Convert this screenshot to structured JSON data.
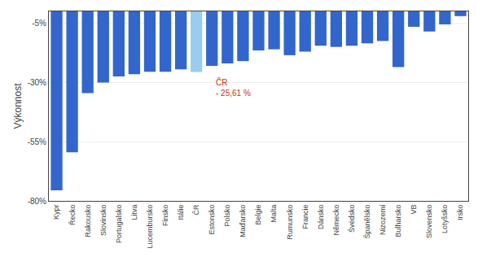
{
  "chart_data": {
    "type": "bar",
    "categories": [
      "Kypr",
      "Řecko",
      "Rakousko",
      "Slovinsko",
      "Portugalsko",
      "Litva",
      "Lucembursko",
      "Finsko",
      "Itálie",
      "ČR",
      "Estonsko",
      "Polsko",
      "Maďarsko",
      "Belgie",
      "Malta",
      "Rumunsko",
      "Francie",
      "Dánsko",
      "Německo",
      "Švédsko",
      "Španělsko",
      "Nizozemí",
      "Bulharsko",
      "VB",
      "Slovensko",
      "Lotyšsko",
      "Irsko"
    ],
    "values": [
      -75.5,
      -59.5,
      -34.5,
      -30.0,
      -27.5,
      -26.5,
      -25.5,
      -25.5,
      -24.5,
      -25.61,
      -23.0,
      -22.0,
      -21.0,
      -16.5,
      -16.0,
      -18.5,
      -17.0,
      -14.5,
      -15.0,
      -14.5,
      -13.5,
      -12.5,
      -23.5,
      -6.5,
      -8.5,
      -5.5,
      -2.0
    ],
    "colors": [
      "#3366CC",
      "#3366CC",
      "#3366CC",
      "#3366CC",
      "#3366CC",
      "#3366CC",
      "#3366CC",
      "#3366CC",
      "#3366CC",
      "#99CCEE",
      "#3366CC",
      "#3366CC",
      "#3366CC",
      "#3366CC",
      "#3366CC",
      "#3366CC",
      "#3366CC",
      "#3366CC",
      "#3366CC",
      "#3366CC",
      "#3366CC",
      "#3366CC",
      "#3366CC",
      "#3366CC",
      "#3366CC",
      "#3366CC",
      "#3366CC"
    ],
    "ylabel": "Výkonnost",
    "ylim": [
      -80,
      0
    ],
    "yticks": [
      {
        "value": -80,
        "label": "-80%"
      },
      {
        "value": -55,
        "label": "-55%"
      },
      {
        "value": -30,
        "label": "-30%"
      },
      {
        "value": -5,
        "label": "-5%"
      }
    ],
    "grid": true,
    "annotations": [
      {
        "text": "ČR\n- 25,61 %",
        "category": "ČR",
        "color": "#CC3300"
      }
    ]
  }
}
